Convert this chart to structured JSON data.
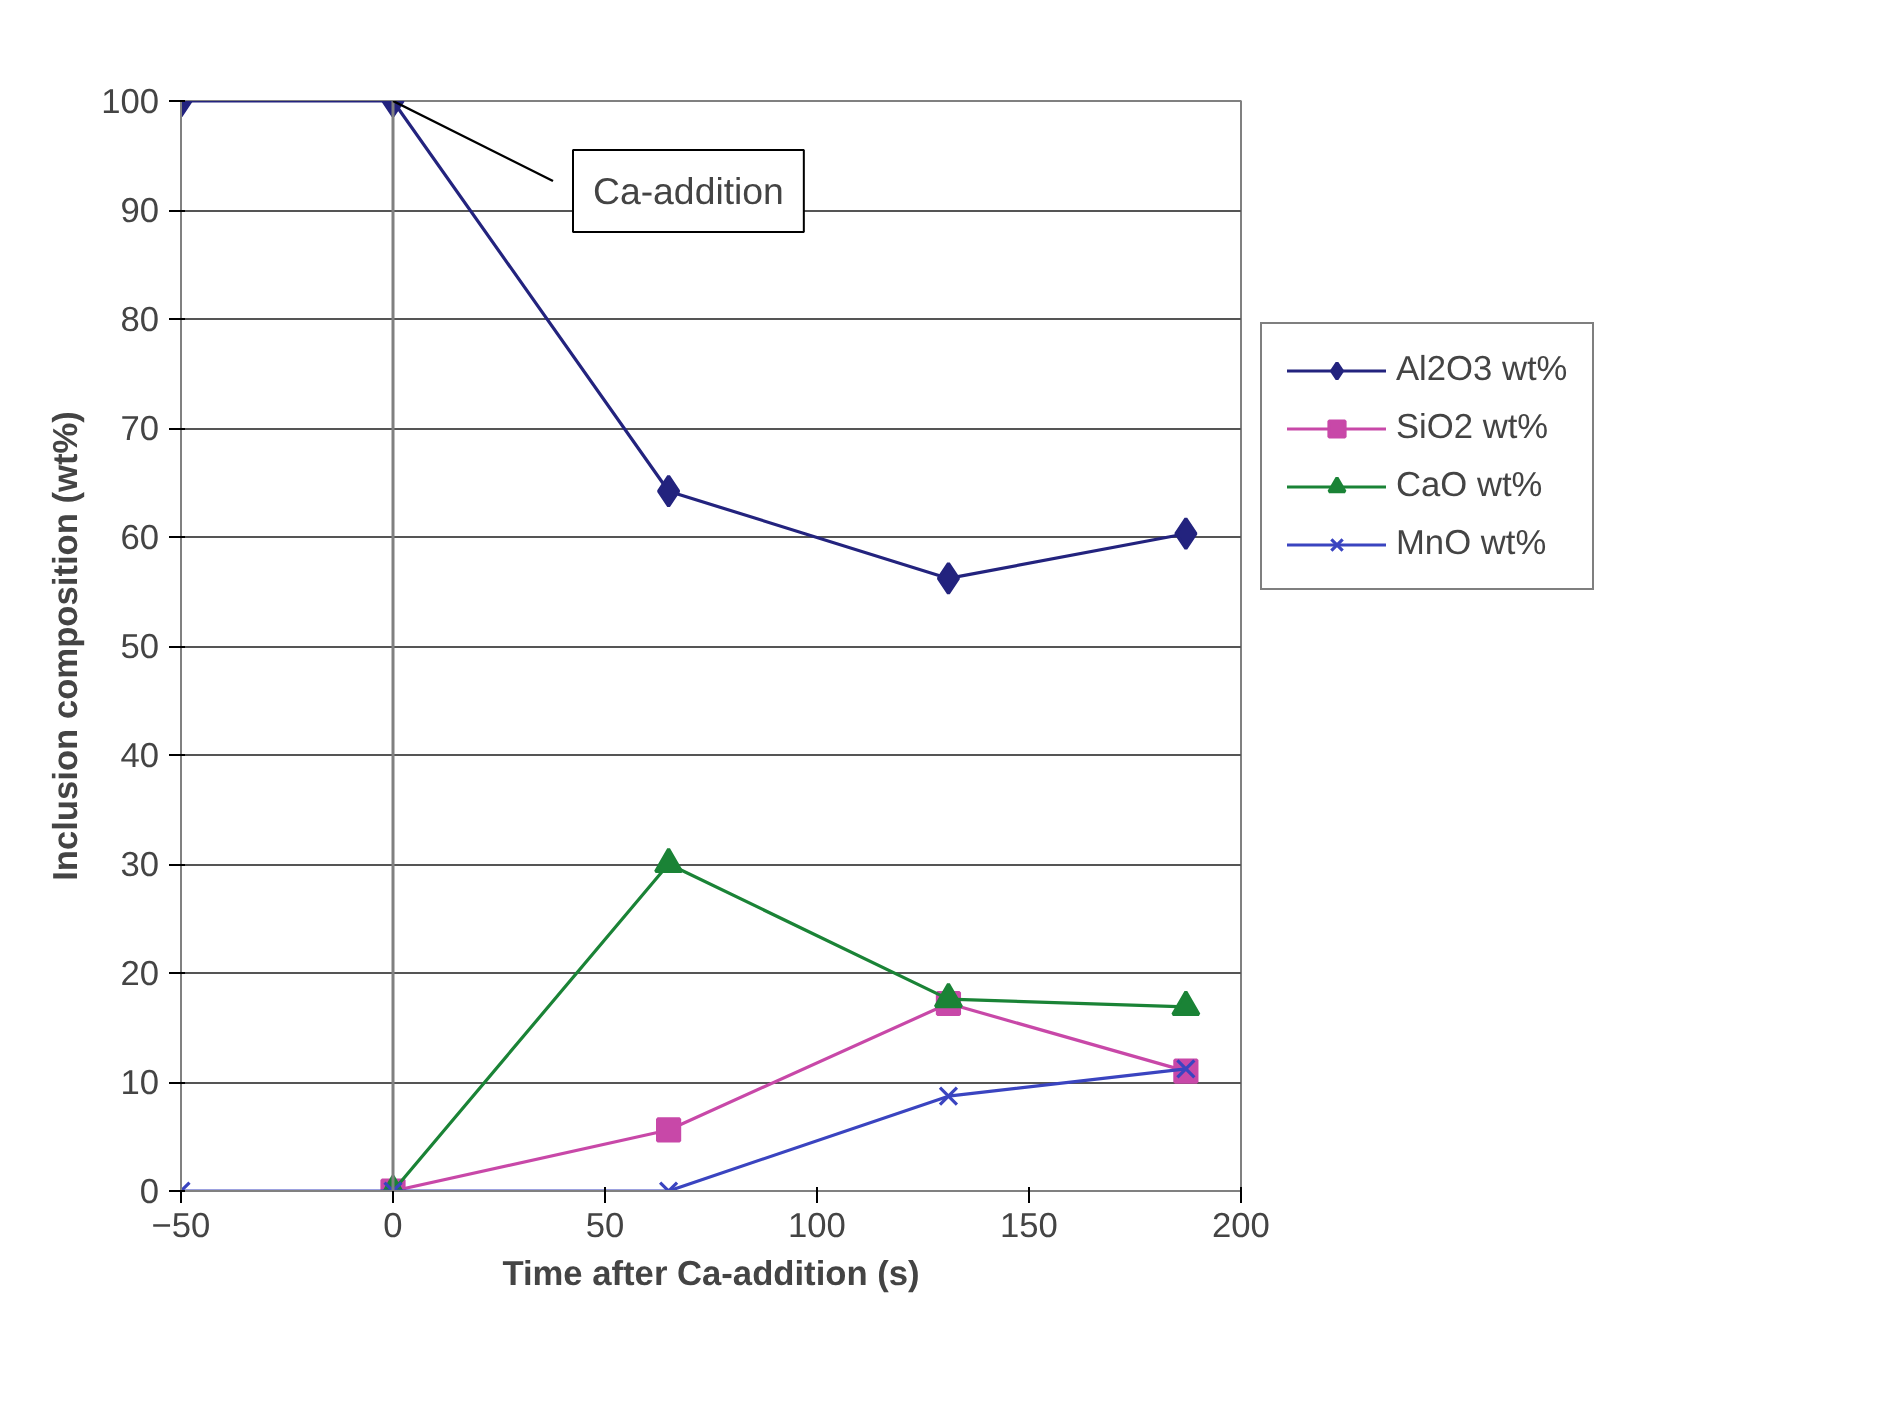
{
  "chart_data": {
    "type": "line",
    "xlabel": "Time after Ca-addition (s)",
    "ylabel": "Inclusion composition (wt%)",
    "xlim": [
      -50,
      200
    ],
    "xticks": [
      -50,
      0,
      50,
      100,
      150,
      200
    ],
    "ylim": [
      0,
      100
    ],
    "yticks": [
      0,
      10,
      20,
      30,
      40,
      50,
      60,
      70,
      80,
      90,
      100
    ],
    "grid": "y",
    "legend": "right",
    "line_style": "solid",
    "ref_lines": [
      {
        "axis": "x",
        "value": 0,
        "color": "#808080"
      }
    ],
    "annotations": [
      {
        "text": "Ca-addition",
        "x": 0,
        "y": 100
      }
    ],
    "series": [
      {
        "name": "Al2O3 wt%",
        "color": "#23237e",
        "marker": "diamond",
        "x": [
          -50,
          0,
          65,
          131,
          187
        ],
        "values": [
          100,
          100,
          64.2,
          56.2,
          60.3
        ]
      },
      {
        "name": "SiO2 wt%",
        "color": "#c848a8",
        "marker": "square",
        "x": [
          0,
          65,
          131,
          187
        ],
        "values": [
          0,
          5.6,
          17.2,
          11
        ]
      },
      {
        "name": "CaO wt%",
        "color": "#1a8336",
        "marker": "triangle",
        "x": [
          0,
          65,
          131,
          187
        ],
        "values": [
          0,
          30,
          17.6,
          16.9
        ]
      },
      {
        "name": "MnO wt%",
        "color": "#3a44c0",
        "marker": "cross",
        "x": [
          -50,
          0,
          65,
          131,
          187
        ],
        "values": [
          0,
          0,
          0,
          8.7,
          11.2
        ]
      }
    ]
  }
}
